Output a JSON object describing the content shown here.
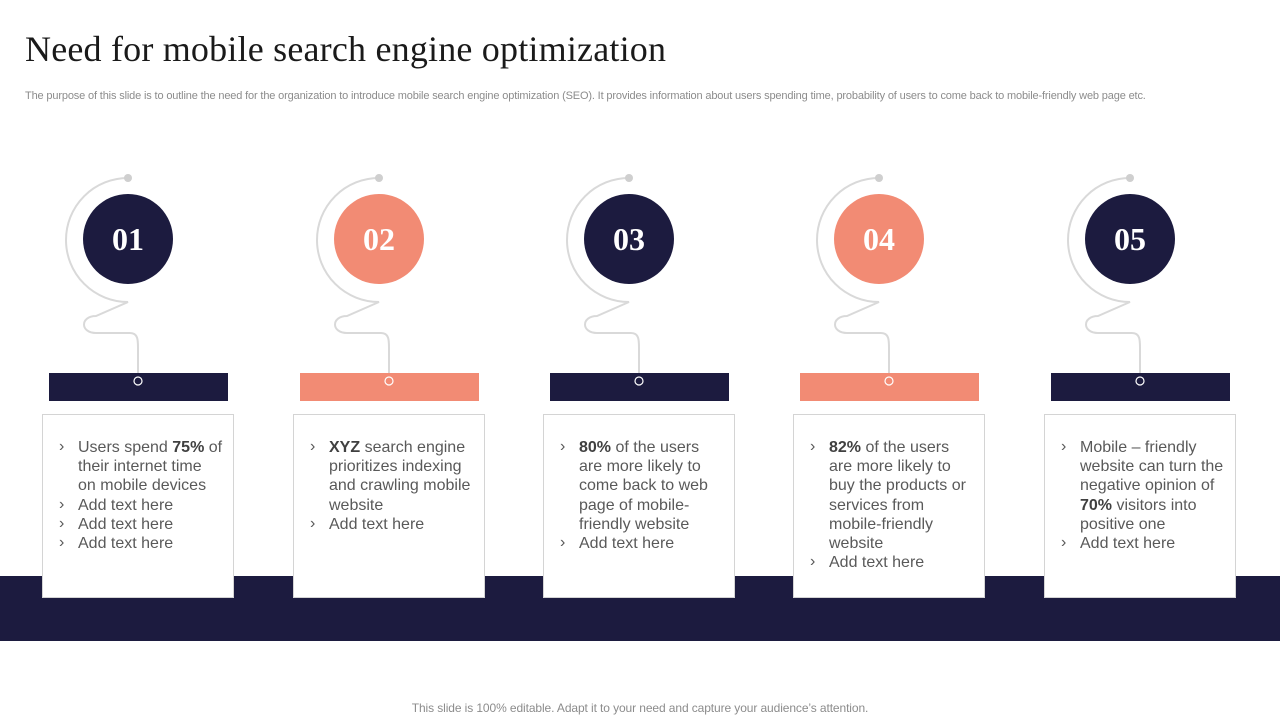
{
  "title": "Need for mobile search engine optimization",
  "subtitle": "The purpose of this slide is to outline the need for the organization to introduce mobile search engine optimization (SEO). It provides information about users spending time, probability of users to come back to mobile-friendly web page etc.",
  "colors": {
    "navy": "#1c1b3f",
    "coral": "#f28b74",
    "line": "#d9d9d9"
  },
  "steps": [
    {
      "number": "01",
      "color": "navy",
      "items": [
        {
          "pre": "Users spend ",
          "bold": "75%",
          "post": " of their internet time on mobile devices"
        },
        {
          "pre": "Add text here",
          "bold": "",
          "post": ""
        },
        {
          "pre": "Add text here",
          "bold": "",
          "post": ""
        },
        {
          "pre": "Add text here",
          "bold": "",
          "post": ""
        }
      ]
    },
    {
      "number": "02",
      "color": "coral",
      "items": [
        {
          "pre": "",
          "bold": "XYZ",
          "post": " search engine prioritizes indexing and crawling mobile website"
        },
        {
          "pre": "Add text here",
          "bold": "",
          "post": ""
        }
      ]
    },
    {
      "number": "03",
      "color": "navy",
      "items": [
        {
          "pre": "",
          "bold": "80%",
          "post": " of the users are more likely to come back to web page of mobile-friendly website"
        },
        {
          "pre": "Add text here",
          "bold": "",
          "post": ""
        }
      ]
    },
    {
      "number": "04",
      "color": "coral",
      "items": [
        {
          "pre": "",
          "bold": "82%",
          "post": " of the users are more likely to buy the products or services from mobile-friendly website"
        },
        {
          "pre": "Add text here",
          "bold": "",
          "post": ""
        }
      ]
    },
    {
      "number": "05",
      "color": "navy",
      "items": [
        {
          "pre": "Mobile – friendly website can turn the negative opinion of ",
          "bold": "70%",
          "post": " visitors into positive one"
        },
        {
          "pre": "Add text here",
          "bold": "",
          "post": ""
        }
      ]
    }
  ],
  "footer": "This slide is 100% editable. Adapt it to your need and capture your audience’s attention."
}
